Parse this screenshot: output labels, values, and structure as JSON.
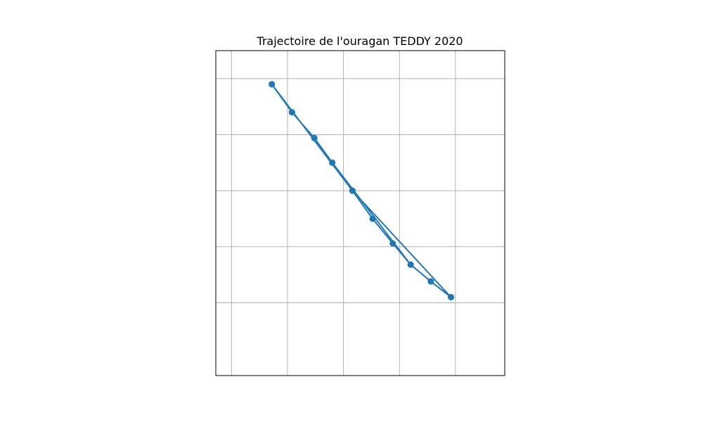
{
  "chart_data": {
    "type": "line",
    "title": "Trajectoire de l'ouragan TEDDY 2020",
    "xlabel": "",
    "ylabel": "",
    "xlim": [
      -1.4,
      11.5
    ],
    "ylim": [
      -5.9,
      23.1
    ],
    "grid": true,
    "grid_x": [
      -0.7,
      1.8,
      4.3,
      6.8,
      9.3
    ],
    "grid_y": [
      0.6,
      5.6,
      10.6,
      15.6,
      20.6
    ],
    "marker": "circle",
    "series": [
      {
        "name": "",
        "color": "#1f77b4",
        "points": [
          {
            "x": 1.1,
            "y": 20.1
          },
          {
            "x": 2.0,
            "y": 17.6
          },
          {
            "x": 3.0,
            "y": 15.3
          },
          {
            "x": 3.8,
            "y": 13.1
          },
          {
            "x": 4.7,
            "y": 10.6
          },
          {
            "x": 5.6,
            "y": 8.1
          },
          {
            "x": 6.5,
            "y": 5.9
          },
          {
            "x": 7.3,
            "y": 4.0
          },
          {
            "x": 8.2,
            "y": 2.5
          },
          {
            "x": 9.1,
            "y": 1.1
          },
          {
            "x": 8.2,
            "y": 2.5
          },
          {
            "x": 7.3,
            "y": 4.0
          },
          {
            "x": 3.8,
            "y": 13.1
          },
          {
            "x": 3.0,
            "y": 15.3
          },
          {
            "x": 2.0,
            "y": 17.6
          },
          {
            "x": 1.1,
            "y": 20.1
          },
          {
            "x": 4.7,
            "y": 10.6
          },
          {
            "x": 9.1,
            "y": 1.1
          }
        ]
      }
    ]
  },
  "colors": {
    "series": "#1f77b4",
    "grid": "#b0b0b0",
    "frame": "#000000",
    "background": "#ffffff"
  }
}
